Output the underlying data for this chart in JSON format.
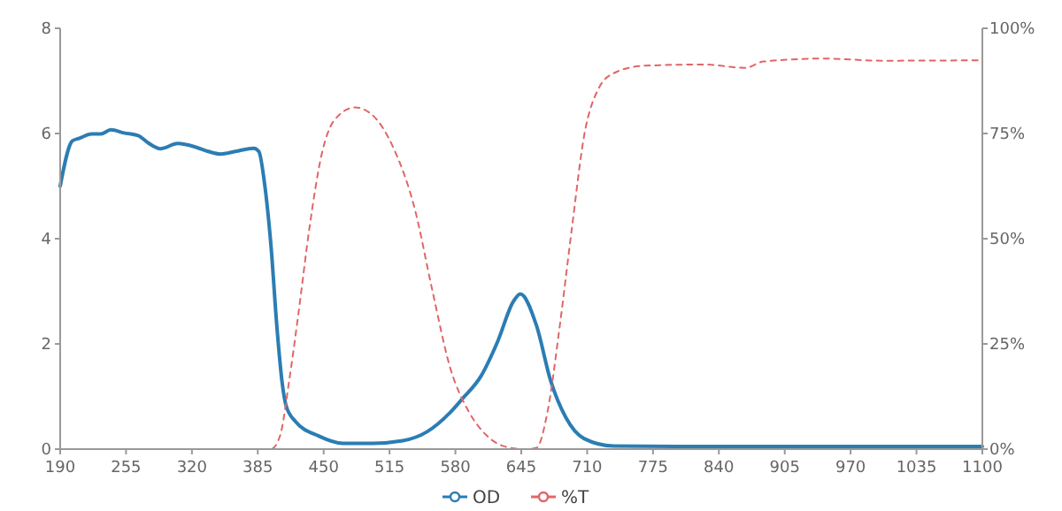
{
  "chart_data": {
    "type": "line",
    "x": [
      190,
      202,
      209,
      221,
      230,
      240,
      253,
      267,
      277,
      289,
      306,
      324,
      336,
      348,
      363,
      381,
      386,
      392,
      398,
      404,
      409,
      413,
      422,
      445,
      469,
      498,
      528,
      552,
      575,
      587,
      605,
      622,
      637,
      644,
      660,
      674,
      689,
      707,
      736,
      800,
      900,
      1000,
      1100
    ],
    "xlim": [
      190,
      1100
    ],
    "xticks": [
      190,
      255,
      320,
      385,
      450,
      515,
      580,
      645,
      710,
      775,
      840,
      905,
      970,
      1035,
      1100
    ],
    "ylim": [
      0,
      8
    ],
    "yticks": [
      0,
      2,
      4,
      6,
      8
    ],
    "y2lim": [
      0,
      100
    ],
    "y2ticks": [
      {
        "value": 0,
        "label": "0%"
      },
      {
        "value": 25,
        "label": "25%"
      },
      {
        "value": 50,
        "label": "50%"
      },
      {
        "value": 75,
        "label": "75%"
      },
      {
        "value": 100,
        "label": "100%"
      }
    ],
    "grid": false,
    "legend": "bottom",
    "marker": "none",
    "series": [
      {
        "name": "OD",
        "color": "#2b7db3",
        "line_style": "solid",
        "values": [
          5.0,
          5.86,
          5.91,
          5.99,
          5.99,
          6.07,
          6.01,
          5.96,
          5.82,
          5.71,
          5.81,
          5.74,
          5.66,
          5.61,
          5.66,
          5.72,
          5.66,
          5.0,
          3.87,
          2.29,
          1.27,
          0.82,
          0.53,
          0.25,
          0.11,
          0.11,
          0.16,
          0.33,
          0.7,
          0.96,
          1.38,
          2.06,
          2.8,
          2.95,
          2.35,
          1.3,
          0.6,
          0.2,
          0.06,
          0.05,
          0.05,
          0.05,
          0.05
        ]
      },
      {
        "name": "%T",
        "color": "#e06666",
        "axis": "y2",
        "line_style": "dashed",
        "x": [
          190,
          398,
          407,
          416,
          425,
          436,
          448,
          460,
          481,
          498,
          519,
          540,
          557,
          575,
          593,
          611,
          629,
          648,
          660,
          671,
          683,
          695,
          707,
          722,
          736,
          766,
          825,
          866,
          884,
          943,
          1002,
          1100
        ],
        "values": [
          0,
          0,
          3.2,
          16.3,
          32,
          52.6,
          70,
          78,
          81.2,
          79.4,
          71.5,
          57,
          38,
          19.2,
          9,
          3.2,
          0.6,
          0,
          0.3,
          9,
          29.3,
          52.6,
          74.4,
          86,
          89.3,
          91.1,
          91.4,
          90.6,
          92.1,
          92.8,
          92.3,
          92.4
        ]
      }
    ]
  }
}
